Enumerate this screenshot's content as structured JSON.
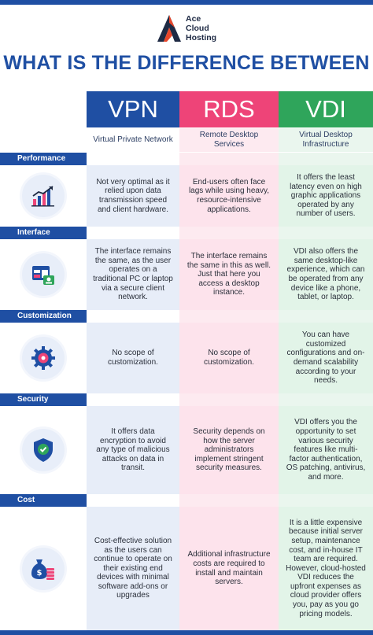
{
  "brand": {
    "name_line1": "Ace",
    "name_line2": "Cloud",
    "name_line3": "Hosting"
  },
  "title": "WHAT IS THE DIFFERENCE BETWEEN",
  "columns": [
    {
      "abbr": "VPN",
      "full": "Virtual Private Network",
      "color": "#1f4fa3"
    },
    {
      "abbr": "RDS",
      "full": "Remote Desktop Services",
      "color": "#ee4478"
    },
    {
      "abbr": "VDI",
      "full": "Virtual Desktop Infrastructure",
      "color": "#2fa55b"
    }
  ],
  "rows": [
    {
      "label": "Performance",
      "icon": "growth-chart-icon",
      "vpn": "Not very optimal as it relied upon data transmission speed and client hardware.",
      "rds": "End-users often face lags while using heavy, resource-intensive applications.",
      "vdi": "It offers the least latency even on high graphic applications operated by any number of users."
    },
    {
      "label": "Interface",
      "icon": "interface-window-icon",
      "vpn": "The interface remains the same, as the user operates on a traditional PC or laptop via a secure client network.",
      "rds": "The interface remains the same in this as well. Just that here you access a desktop instance.",
      "vdi": "VDI also offers the same desktop-like experience, which can be operated from any device like a phone, tablet, or laptop."
    },
    {
      "label": "Customization",
      "icon": "gear-icon",
      "vpn": "No scope of customization.",
      "rds": "No scope of customization.",
      "vdi": "You can have customized configurations and on-demand scalability according to your needs."
    },
    {
      "label": "Security",
      "icon": "shield-check-icon",
      "vpn": "It offers data encryption to avoid any type of malicious attacks on data in transit.",
      "rds": "Security depends on how the server administrators implement stringent security measures.",
      "vdi": "VDI offers you the opportunity to set various security features like multi-factor authentication, OS patching, antivirus, and more."
    },
    {
      "label": "Cost",
      "icon": "money-bag-icon",
      "vpn": "Cost-effective solution as the users can continue to operate on their existing end devices with minimal software add-ons or upgrades",
      "rds": "Additional infrastructure costs are required to install and maintain servers.",
      "vdi": "It is a little expensive because initial server setup, maintenance cost, and in-house IT team are required. However, cloud-hosted VDI reduces the upfront expenses as cloud provider offers you, pay as you go pricing models."
    }
  ]
}
